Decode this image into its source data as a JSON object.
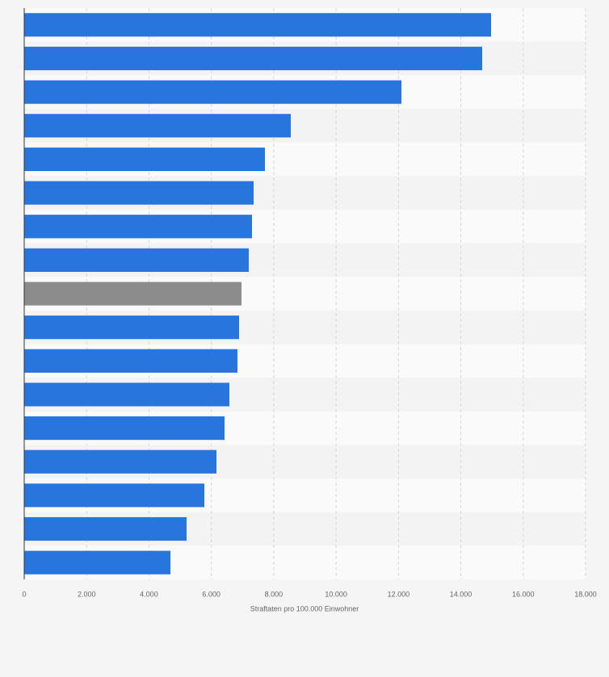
{
  "chart_data": {
    "type": "bar",
    "orientation": "horizontal",
    "x_label": "Straftaten pro 100.000 Einwohner",
    "categories": [
      null,
      null,
      null,
      null,
      null,
      null,
      null,
      null,
      null,
      null,
      null,
      null,
      null,
      null,
      null,
      null,
      null
    ],
    "values": [
      14970,
      14685,
      12095,
      8547,
      7718,
      7356,
      7304,
      7200,
      6967,
      6889,
      6837,
      6578,
      6423,
      6164,
      5776,
      5206,
      4688
    ],
    "colors": [
      "#2876dd",
      "#2876dd",
      "#2876dd",
      "#2876dd",
      "#2876dd",
      "#2876dd",
      "#2876dd",
      "#2876dd",
      "#8c8c8c",
      "#2876dd",
      "#2876dd",
      "#2876dd",
      "#2876dd",
      "#2876dd",
      "#2876dd",
      "#2876dd",
      "#2876dd"
    ],
    "xlim": [
      0,
      18000
    ],
    "xticks": [
      0,
      {
        "value": 2000,
        "label": "2.000"
      },
      {
        "value": 4000,
        "label": "4.000"
      },
      {
        "value": 6000,
        "label": "6.000"
      },
      {
        "value": 8000,
        "label": "8.000"
      },
      {
        "value": 10000,
        "label": "10.000"
      },
      {
        "value": 12000,
        "label": "12.000"
      },
      {
        "value": 14000,
        "label": "14.000"
      },
      {
        "value": 16000,
        "label": "16.000"
      },
      {
        "value": 18000,
        "label": "18.000"
      }
    ],
    "grid": true
  }
}
